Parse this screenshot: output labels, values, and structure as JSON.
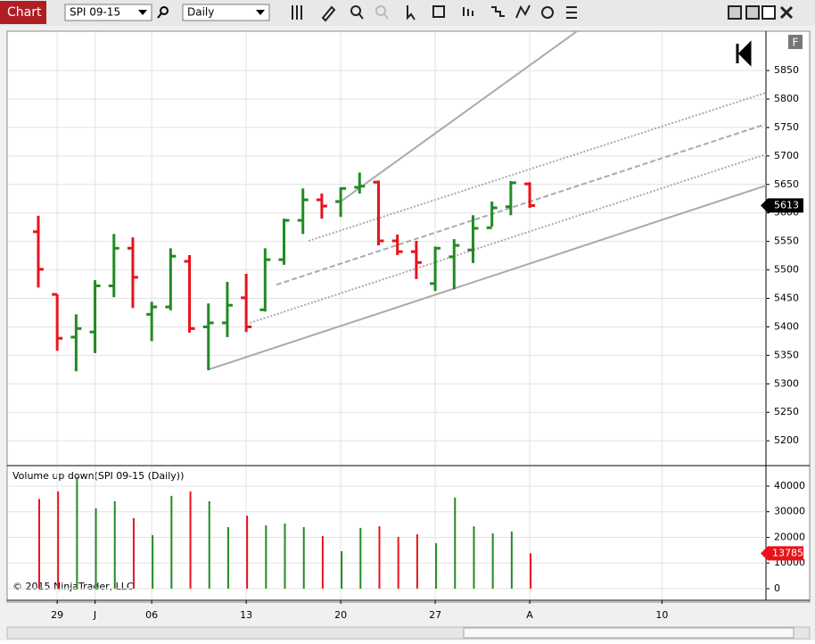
{
  "toolbar": {
    "title": "Chart",
    "instrument": "SPI 09-15",
    "interval": "Daily"
  },
  "side_button": "F",
  "copyright": "© 2015 NinjaTrader, LLC",
  "chart_data": [
    {
      "type": "ohlc",
      "up_color": "#228b22",
      "down_color": "#e8141b",
      "xlim": [
        -1.65,
        38.5
      ],
      "xticks": [
        {
          "value": 1,
          "label": "29"
        },
        {
          "value": 3,
          "label": "J"
        },
        {
          "value": 6,
          "label": "06"
        },
        {
          "value": 11,
          "label": "13"
        },
        {
          "value": 16,
          "label": "20"
        },
        {
          "value": 21,
          "label": "27"
        },
        {
          "value": 26,
          "label": "A"
        },
        {
          "value": 33,
          "label": "10"
        }
      ],
      "open": [
        5567,
        5457,
        5382,
        5391,
        5472,
        5538,
        5422,
        5435,
        5515,
        5400,
        5407,
        5451,
        5430,
        5518,
        5587,
        5623,
        5620,
        5645,
        5654,
        5551,
        5532,
        5476,
        5523,
        5535,
        5574,
        5611,
        5651
      ],
      "high": [
        5595,
        5457,
        5422,
        5482,
        5563,
        5557,
        5444,
        5538,
        5526,
        5441,
        5479,
        5493,
        5538,
        5590,
        5643,
        5634,
        5645,
        5671,
        5657,
        5562,
        5551,
        5541,
        5554,
        5596,
        5620,
        5656,
        5654
      ],
      "low": [
        5469,
        5358,
        5322,
        5354,
        5452,
        5433,
        5375,
        5429,
        5390,
        5324,
        5382,
        5391,
        5427,
        5509,
        5563,
        5590,
        5593,
        5634,
        5543,
        5526,
        5484,
        5463,
        5466,
        5512,
        5576,
        5596,
        5609
      ],
      "close": [
        5501,
        5380,
        5397,
        5472,
        5538,
        5487,
        5435,
        5524,
        5397,
        5407,
        5438,
        5400,
        5518,
        5587,
        5623,
        5612,
        5643,
        5647,
        5551,
        5532,
        5513,
        5538,
        5543,
        5573,
        5609,
        5653,
        5613
      ],
      "ylim": [
        5158,
        5919
      ],
      "yticks": [
        5200,
        5250,
        5300,
        5350,
        5400,
        5450,
        5500,
        5550,
        5600,
        5650,
        5700,
        5750,
        5800,
        5850
      ],
      "grid": true,
      "trend_lines": [
        {
          "style": "solid",
          "x": [
            9,
            38.5
          ],
          "y": [
            5325,
            5648
          ]
        },
        {
          "style": "solid",
          "x": [
            16,
            28.5
          ],
          "y": [
            5620,
            5919
          ]
        },
        {
          "style": "dashed",
          "x": [
            12.6,
            38.5
          ],
          "y": [
            5474,
            5756
          ]
        },
        {
          "style": "dotted",
          "x": [
            11.2,
            38.5
          ],
          "y": [
            5407,
            5703
          ]
        },
        {
          "style": "dotted",
          "x": [
            14.3,
            38.5
          ],
          "y": [
            5551,
            5811
          ]
        }
      ]
    },
    {
      "type": "volume",
      "title": "Volume up down(SPI 09-15 (Daily))",
      "values": [
        35000,
        37900,
        43500,
        31300,
        34100,
        27500,
        20900,
        36200,
        37900,
        34100,
        24000,
        28500,
        24700,
        25400,
        24000,
        20500,
        14600,
        23700,
        24300,
        20200,
        21200,
        17700,
        35500,
        24300,
        21600,
        22300,
        13785
      ],
      "ylim": [
        -4200,
        47650
      ],
      "yticks": [
        0,
        10000,
        20000,
        30000,
        40000
      ],
      "grid": true
    }
  ]
}
